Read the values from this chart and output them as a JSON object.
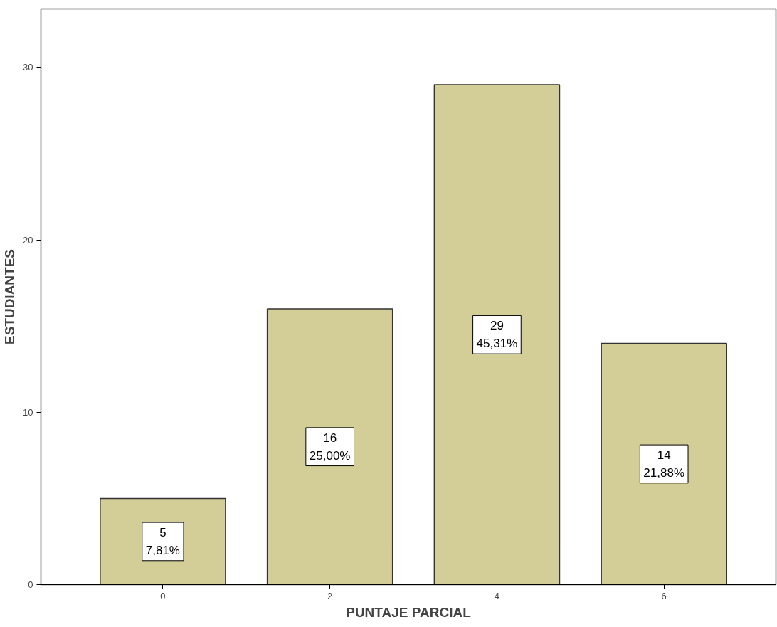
{
  "chart_data": {
    "type": "bar",
    "xlabel": "PUNTAJE PARCIAL",
    "ylabel": "ESTUDIANTES",
    "categories": [
      "0",
      "2",
      "4",
      "6"
    ],
    "values": [
      5,
      16,
      29,
      14
    ],
    "value_labels": [
      "5\n7,81%",
      "16\n25,00%",
      "29\n45,31%",
      "14\n21,88%"
    ],
    "color": "#d3cd98",
    "ylim": [
      0,
      33.4
    ],
    "yticks": [
      0,
      10,
      20,
      30
    ],
    "grid": false
  }
}
